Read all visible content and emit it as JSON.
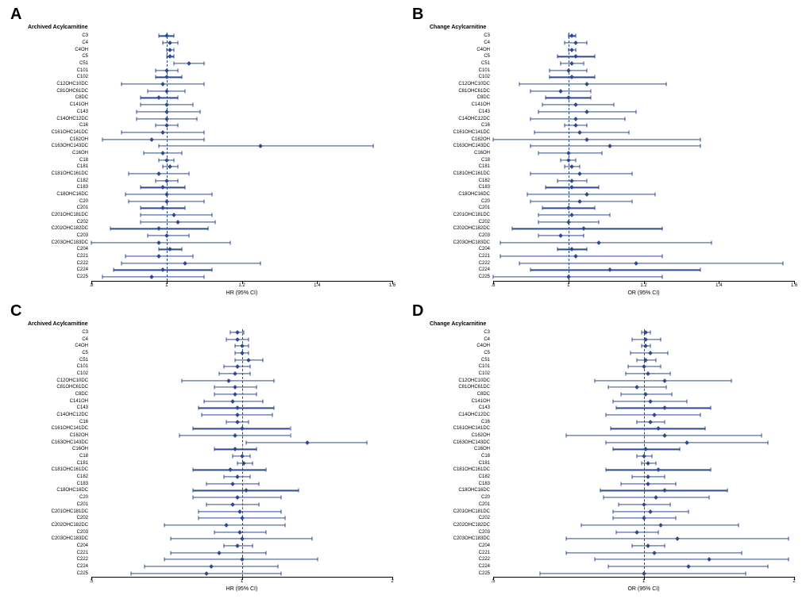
{
  "figure": {
    "colors": {
      "series": "#2e4a8e",
      "axis": "#000000",
      "background": "#ffffff"
    },
    "labels": [
      "C3",
      "C4",
      "C4OH",
      "C5",
      "C51",
      "C101",
      "C102",
      "C12OHC10DC",
      "C81OHC61DC",
      "C8DC",
      "C141OH",
      "C143",
      "C14OHC12DC",
      "C16",
      "C161OHC141DC",
      "C162OH",
      "C163OHC143DC",
      "C16OH",
      "C18",
      "C181",
      "C181OHC161DC",
      "C182",
      "C183",
      "C18OHC16DC",
      "C20",
      "C201",
      "C201OHC181DC",
      "C202",
      "C202OHC182DC",
      "C203",
      "C203OHC183DC",
      "C204",
      "C221",
      "C222",
      "C224",
      "C225"
    ],
    "panels": {
      "A": {
        "letter": "A",
        "title": "Archived Acylcarnitine",
        "xlabel": "HR (95% CI)",
        "xmin": 0.8,
        "xmax": 1.6,
        "xticks": [
          0.8,
          1,
          1.2,
          1.4,
          1.6
        ],
        "ref": 1.0,
        "scale": "linear",
        "data": [
          {
            "lo": 0.98,
            "pt": 1.0,
            "hi": 1.02
          },
          {
            "lo": 0.99,
            "pt": 1.01,
            "hi": 1.03
          },
          {
            "lo": 1.0,
            "pt": 1.01,
            "hi": 1.02
          },
          {
            "lo": 1.0,
            "pt": 1.01,
            "hi": 1.02
          },
          {
            "lo": 1.02,
            "pt": 1.06,
            "hi": 1.1
          },
          {
            "lo": 0.97,
            "pt": 1.0,
            "hi": 1.03
          },
          {
            "lo": 0.97,
            "pt": 1.0,
            "hi": 1.04
          },
          {
            "lo": 0.88,
            "pt": 0.99,
            "hi": 1.1
          },
          {
            "lo": 0.95,
            "pt": 1.0,
            "hi": 1.05
          },
          {
            "lo": 0.93,
            "pt": 0.98,
            "hi": 1.03
          },
          {
            "lo": 0.93,
            "pt": 1.0,
            "hi": 1.07
          },
          {
            "lo": 0.92,
            "pt": 1.0,
            "hi": 1.09
          },
          {
            "lo": 0.92,
            "pt": 1.0,
            "hi": 1.08
          },
          {
            "lo": 0.97,
            "pt": 1.0,
            "hi": 1.03
          },
          {
            "lo": 0.88,
            "pt": 0.99,
            "hi": 1.1
          },
          {
            "lo": 0.83,
            "pt": 0.96,
            "hi": 1.1
          },
          {
            "lo": 0.98,
            "pt": 1.25,
            "hi": 1.55
          },
          {
            "lo": 0.94,
            "pt": 0.99,
            "hi": 1.04
          },
          {
            "lo": 0.98,
            "pt": 1.0,
            "hi": 1.02
          },
          {
            "lo": 0.99,
            "pt": 1.01,
            "hi": 1.03
          },
          {
            "lo": 0.9,
            "pt": 0.98,
            "hi": 1.06
          },
          {
            "lo": 0.97,
            "pt": 1.0,
            "hi": 1.03
          },
          {
            "lo": 0.93,
            "pt": 0.99,
            "hi": 1.05
          },
          {
            "lo": 0.89,
            "pt": 1.0,
            "hi": 1.12
          },
          {
            "lo": 0.9,
            "pt": 1.0,
            "hi": 1.1
          },
          {
            "lo": 0.93,
            "pt": 0.99,
            "hi": 1.05
          },
          {
            "lo": 0.93,
            "pt": 1.02,
            "hi": 1.12
          },
          {
            "lo": 0.93,
            "pt": 1.03,
            "hi": 1.13
          },
          {
            "lo": 0.85,
            "pt": 0.98,
            "hi": 1.11
          },
          {
            "lo": 0.95,
            "pt": 1.0,
            "hi": 1.06
          },
          {
            "lo": 0.8,
            "pt": 0.98,
            "hi": 1.17
          },
          {
            "lo": 0.98,
            "pt": 1.01,
            "hi": 1.04
          },
          {
            "lo": 0.89,
            "pt": 0.98,
            "hi": 1.07
          },
          {
            "lo": 0.88,
            "pt": 1.05,
            "hi": 1.25
          },
          {
            "lo": 0.86,
            "pt": 0.99,
            "hi": 1.12
          },
          {
            "lo": 0.83,
            "pt": 0.96,
            "hi": 1.1
          }
        ]
      },
      "B": {
        "letter": "B",
        "title": "Change Acylcarnitine",
        "xlabel": "OR (95% CI)",
        "xmin": 0.8,
        "xmax": 1.6,
        "xticks": [
          0.8,
          1,
          1.2,
          1.4,
          1.6
        ],
        "ref": 1.0,
        "scale": "linear",
        "data": [
          {
            "lo": 1.0,
            "pt": 1.01,
            "hi": 1.02
          },
          {
            "lo": 0.99,
            "pt": 1.02,
            "hi": 1.05
          },
          {
            "lo": 1.0,
            "pt": 1.01,
            "hi": 1.02
          },
          {
            "lo": 0.97,
            "pt": 1.02,
            "hi": 1.07
          },
          {
            "lo": 0.98,
            "pt": 1.01,
            "hi": 1.04
          },
          {
            "lo": 0.95,
            "pt": 1.0,
            "hi": 1.05
          },
          {
            "lo": 0.95,
            "pt": 1.01,
            "hi": 1.07
          },
          {
            "lo": 0.87,
            "pt": 1.05,
            "hi": 1.26
          },
          {
            "lo": 0.9,
            "pt": 0.98,
            "hi": 1.06
          },
          {
            "lo": 0.94,
            "pt": 1.0,
            "hi": 1.06
          },
          {
            "lo": 0.93,
            "pt": 1.02,
            "hi": 1.12
          },
          {
            "lo": 0.92,
            "pt": 1.05,
            "hi": 1.18
          },
          {
            "lo": 0.9,
            "pt": 1.02,
            "hi": 1.15
          },
          {
            "lo": 0.99,
            "pt": 1.02,
            "hi": 1.05
          },
          {
            "lo": 0.91,
            "pt": 1.03,
            "hi": 1.16
          },
          {
            "lo": 0.8,
            "pt": 1.05,
            "hi": 1.35
          },
          {
            "lo": 0.9,
            "pt": 1.11,
            "hi": 1.35
          },
          {
            "lo": 0.92,
            "pt": 1.0,
            "hi": 1.09
          },
          {
            "lo": 0.98,
            "pt": 1.0,
            "hi": 1.02
          },
          {
            "lo": 0.99,
            "pt": 1.01,
            "hi": 1.03
          },
          {
            "lo": 0.9,
            "pt": 1.03,
            "hi": 1.17
          },
          {
            "lo": 0.97,
            "pt": 1.01,
            "hi": 1.05
          },
          {
            "lo": 0.94,
            "pt": 1.01,
            "hi": 1.08
          },
          {
            "lo": 0.89,
            "pt": 1.05,
            "hi": 1.23
          },
          {
            "lo": 0.9,
            "pt": 1.03,
            "hi": 1.17
          },
          {
            "lo": 0.93,
            "pt": 1.0,
            "hi": 1.07
          },
          {
            "lo": 0.92,
            "pt": 1.01,
            "hi": 1.11
          },
          {
            "lo": 0.92,
            "pt": 1.0,
            "hi": 1.08
          },
          {
            "lo": 0.85,
            "pt": 1.04,
            "hi": 1.25
          },
          {
            "lo": 0.92,
            "pt": 0.98,
            "hi": 1.04
          },
          {
            "lo": 0.82,
            "pt": 1.08,
            "hi": 1.38
          },
          {
            "lo": 0.97,
            "pt": 1.01,
            "hi": 1.05
          },
          {
            "lo": 0.82,
            "pt": 1.02,
            "hi": 1.25
          },
          {
            "lo": 0.87,
            "pt": 1.18,
            "hi": 1.57
          },
          {
            "lo": 0.9,
            "pt": 1.11,
            "hi": 1.35
          },
          {
            "lo": 0.8,
            "pt": 1.0,
            "hi": 1.25
          }
        ]
      },
      "C": {
        "letter": "C",
        "title": "Archived Acylcarnitine",
        "xlabel": "HR (95% CI)",
        "xmin": 0.5,
        "xmax": 2.0,
        "xticks": [
          0.5,
          1,
          2
        ],
        "ref": 1.0,
        "scale": "log",
        "data": [
          {
            "lo": 0.95,
            "pt": 0.98,
            "hi": 1.01
          },
          {
            "lo": 0.93,
            "pt": 0.98,
            "hi": 1.03
          },
          {
            "lo": 0.97,
            "pt": 1.0,
            "hi": 1.03
          },
          {
            "lo": 0.97,
            "pt": 1.0,
            "hi": 1.03
          },
          {
            "lo": 0.97,
            "pt": 1.03,
            "hi": 1.1
          },
          {
            "lo": 0.92,
            "pt": 0.98,
            "hi": 1.04
          },
          {
            "lo": 0.9,
            "pt": 0.97,
            "hi": 1.04
          },
          {
            "lo": 0.76,
            "pt": 0.94,
            "hi": 1.16
          },
          {
            "lo": 0.88,
            "pt": 0.97,
            "hi": 1.07
          },
          {
            "lo": 0.88,
            "pt": 0.97,
            "hi": 1.07
          },
          {
            "lo": 0.84,
            "pt": 0.96,
            "hi": 1.1
          },
          {
            "lo": 0.82,
            "pt": 0.98,
            "hi": 1.16
          },
          {
            "lo": 0.83,
            "pt": 0.98,
            "hi": 1.15
          },
          {
            "lo": 0.93,
            "pt": 0.98,
            "hi": 1.03
          },
          {
            "lo": 0.8,
            "pt": 1.0,
            "hi": 1.25
          },
          {
            "lo": 0.75,
            "pt": 0.97,
            "hi": 1.25
          },
          {
            "lo": 1.02,
            "pt": 1.35,
            "hi": 1.78
          },
          {
            "lo": 0.88,
            "pt": 0.97,
            "hi": 1.07
          },
          {
            "lo": 0.96,
            "pt": 1.0,
            "hi": 1.04
          },
          {
            "lo": 0.98,
            "pt": 1.01,
            "hi": 1.05
          },
          {
            "lo": 0.8,
            "pt": 0.95,
            "hi": 1.12
          },
          {
            "lo": 0.92,
            "pt": 0.98,
            "hi": 1.04
          },
          {
            "lo": 0.85,
            "pt": 0.96,
            "hi": 1.08
          },
          {
            "lo": 0.8,
            "pt": 1.02,
            "hi": 1.3
          },
          {
            "lo": 0.8,
            "pt": 0.98,
            "hi": 1.2
          },
          {
            "lo": 0.85,
            "pt": 0.96,
            "hi": 1.08
          },
          {
            "lo": 0.82,
            "pt": 0.99,
            "hi": 1.2
          },
          {
            "lo": 0.82,
            "pt": 1.0,
            "hi": 1.22
          },
          {
            "lo": 0.7,
            "pt": 0.93,
            "hi": 1.22
          },
          {
            "lo": 0.88,
            "pt": 0.99,
            "hi": 1.12
          },
          {
            "lo": 0.72,
            "pt": 1.0,
            "hi": 1.38
          },
          {
            "lo": 0.92,
            "pt": 0.98,
            "hi": 1.05
          },
          {
            "lo": 0.72,
            "pt": 0.9,
            "hi": 1.12
          },
          {
            "lo": 0.7,
            "pt": 1.0,
            "hi": 1.42
          },
          {
            "lo": 0.64,
            "pt": 0.87,
            "hi": 1.18
          },
          {
            "lo": 0.6,
            "pt": 0.85,
            "hi": 1.2
          }
        ]
      },
      "D": {
        "letter": "D",
        "title": "Change Acylcarnitine",
        "xlabel": "OR (95% CI)",
        "xmin": 0.5,
        "xmax": 2.0,
        "xticks": [
          0.5,
          1,
          2
        ],
        "ref": 1.0,
        "scale": "log",
        "data": [
          {
            "lo": 0.99,
            "pt": 1.01,
            "hi": 1.03
          },
          {
            "lo": 0.95,
            "pt": 1.01,
            "hi": 1.08
          },
          {
            "lo": 0.99,
            "pt": 1.01,
            "hi": 1.03
          },
          {
            "lo": 0.94,
            "pt": 1.03,
            "hi": 1.12
          },
          {
            "lo": 0.97,
            "pt": 1.01,
            "hi": 1.06
          },
          {
            "lo": 0.93,
            "pt": 1.0,
            "hi": 1.08
          },
          {
            "lo": 0.92,
            "pt": 1.02,
            "hi": 1.13
          },
          {
            "lo": 0.8,
            "pt": 1.1,
            "hi": 1.5
          },
          {
            "lo": 0.85,
            "pt": 0.97,
            "hi": 1.11
          },
          {
            "lo": 0.9,
            "pt": 1.01,
            "hi": 1.14
          },
          {
            "lo": 0.87,
            "pt": 1.03,
            "hi": 1.22
          },
          {
            "lo": 0.88,
            "pt": 1.1,
            "hi": 1.36
          },
          {
            "lo": 0.84,
            "pt": 1.05,
            "hi": 1.3
          },
          {
            "lo": 0.97,
            "pt": 1.03,
            "hi": 1.1
          },
          {
            "lo": 0.86,
            "pt": 1.07,
            "hi": 1.33
          },
          {
            "lo": 0.7,
            "pt": 1.1,
            "hi": 1.72
          },
          {
            "lo": 0.84,
            "pt": 1.22,
            "hi": 1.77
          },
          {
            "lo": 0.87,
            "pt": 1.01,
            "hi": 1.18
          },
          {
            "lo": 0.97,
            "pt": 1.0,
            "hi": 1.04
          },
          {
            "lo": 0.99,
            "pt": 1.02,
            "hi": 1.06
          },
          {
            "lo": 0.84,
            "pt": 1.07,
            "hi": 1.36
          },
          {
            "lo": 0.95,
            "pt": 1.02,
            "hi": 1.1
          },
          {
            "lo": 0.9,
            "pt": 1.02,
            "hi": 1.16
          },
          {
            "lo": 0.82,
            "pt": 1.1,
            "hi": 1.47
          },
          {
            "lo": 0.83,
            "pt": 1.06,
            "hi": 1.35
          },
          {
            "lo": 0.89,
            "pt": 1.0,
            "hi": 1.13
          },
          {
            "lo": 0.87,
            "pt": 1.03,
            "hi": 1.23
          },
          {
            "lo": 0.87,
            "pt": 1.0,
            "hi": 1.16
          },
          {
            "lo": 0.75,
            "pt": 1.08,
            "hi": 1.55
          },
          {
            "lo": 0.88,
            "pt": 0.97,
            "hi": 1.07
          },
          {
            "lo": 0.7,
            "pt": 1.17,
            "hi": 1.95
          },
          {
            "lo": 0.95,
            "pt": 1.02,
            "hi": 1.1
          },
          {
            "lo": 0.7,
            "pt": 1.05,
            "hi": 1.57
          },
          {
            "lo": 0.8,
            "pt": 1.35,
            "hi": 1.95
          },
          {
            "lo": 0.85,
            "pt": 1.23,
            "hi": 1.77
          },
          {
            "lo": 0.62,
            "pt": 1.0,
            "hi": 1.6
          }
        ]
      }
    }
  }
}
